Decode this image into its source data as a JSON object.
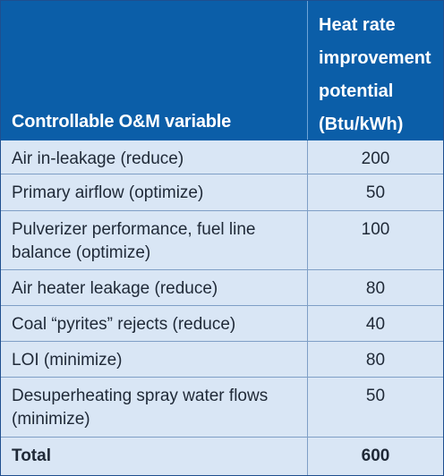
{
  "table": {
    "headers": {
      "variable": "Controllable O&M variable",
      "potential": "Heat rate\nimprovement\npotential\n(Btu/kWh)"
    },
    "rows": [
      {
        "variable": "Air in-leakage (reduce)",
        "value": "200"
      },
      {
        "variable": "Primary airflow (optimize)",
        "value": "50"
      },
      {
        "variable": "Pulverizer performance, fuel line balance (optimize)",
        "value": "100"
      },
      {
        "variable": "Air heater leakage (reduce)",
        "value": "80"
      },
      {
        "variable": "Coal “pyrites” rejects (reduce)",
        "value": "40"
      },
      {
        "variable": "LOI (minimize)",
        "value": "80"
      },
      {
        "variable": "Desuperheating spray water flows (minimize)",
        "value": "50"
      }
    ],
    "total": {
      "label": "Total",
      "value": "600"
    }
  },
  "colors": {
    "header_bg": "#0b5ea8",
    "body_bg": "#d9e6f5",
    "rule": "#7f9fc6"
  }
}
